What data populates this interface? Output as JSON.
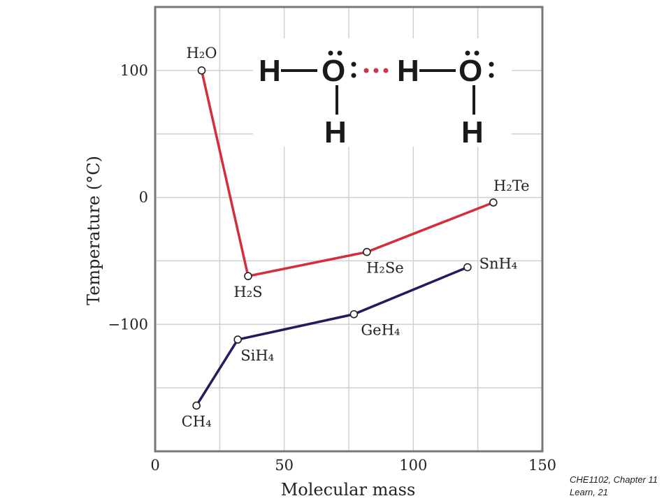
{
  "chart_data": {
    "type": "line",
    "xlabel": "Molecular mass",
    "ylabel": "Temperature (°C)",
    "xlim": [
      0,
      150
    ],
    "ylim": [
      -200,
      150
    ],
    "xticks": [
      0,
      50,
      100,
      150
    ],
    "yticks": [
      -100,
      0,
      100
    ],
    "grid": true,
    "series": [
      {
        "color": "#d42e3d",
        "points": [
          {
            "x": 18,
            "y": 100,
            "label": "H₂O"
          },
          {
            "x": 36,
            "y": -62,
            "label": "H₂S"
          },
          {
            "x": 82,
            "y": -43,
            "label": "H₂Se"
          },
          {
            "x": 131,
            "y": -4,
            "label": "H₂Te"
          }
        ]
      },
      {
        "color": "#241a5e",
        "points": [
          {
            "x": 16,
            "y": -164,
            "label": "CH₄"
          },
          {
            "x": 32,
            "y": -112,
            "label": "SiH₄"
          },
          {
            "x": 77,
            "y": -92,
            "label": "GeH₄"
          },
          {
            "x": 121,
            "y": -55,
            "label": "SnH₄"
          }
        ]
      }
    ]
  },
  "inset": {
    "hydrogen_bond_color": "#d4304a",
    "bonded_h_color": "#2aa3d6",
    "atoms": {
      "h": "H",
      "o": "O"
    }
  },
  "footer": {
    "line1": "CHE1102, Chapter 11",
    "line2": "Learn, 21"
  }
}
